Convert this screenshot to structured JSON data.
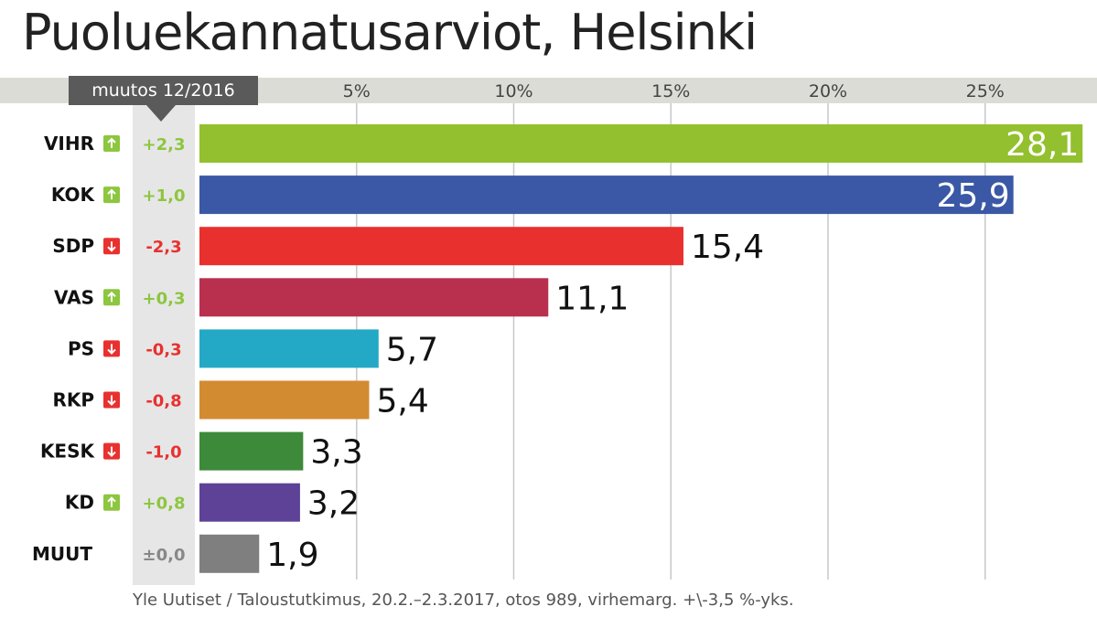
{
  "title": "Puoluekannatusarviot, Helsinki",
  "change_header": "muutos 12/2016",
  "footer": "Yle Uutiset / Taloustutkimus, 20.2.–2.3.2017, otos 989, virhemarg. +\\-3,5 %-yks.",
  "colors": {
    "up": "#8dc63f",
    "down": "#e8312f",
    "neutral": "#888888"
  },
  "chart_data": {
    "type": "bar",
    "orientation": "horizontal",
    "categories": [
      "VIHR",
      "KOK",
      "SDP",
      "VAS",
      "PS",
      "RKP",
      "KESK",
      "KD",
      "MUUT"
    ],
    "values": [
      28.1,
      25.9,
      15.4,
      11.1,
      5.7,
      5.4,
      3.3,
      3.2,
      1.9
    ],
    "value_labels": [
      "28,1",
      "25,9",
      "15,4",
      "11,1",
      "5,7",
      "5,4",
      "3,3",
      "3,2",
      "1,9"
    ],
    "changes": [
      "+2,3",
      "+1,0",
      "-2,3",
      "+0,3",
      "-0,3",
      "-0,8",
      "-1,0",
      "+0,8",
      "±0,0"
    ],
    "change_direction": [
      "up",
      "up",
      "down",
      "up",
      "down",
      "down",
      "down",
      "up",
      "none"
    ],
    "bar_colors": [
      "#93c02f",
      "#3a58a5",
      "#e8312f",
      "#b9304f",
      "#23a9c5",
      "#d38b31",
      "#3d8a3a",
      "#5d4297",
      "#7f7f7f"
    ],
    "ticks": [
      5,
      10,
      15,
      20,
      25
    ],
    "tick_labels": [
      "5%",
      "10%",
      "15%",
      "20%",
      "25%"
    ],
    "xlim": [
      0,
      28.1
    ],
    "grid": true
  }
}
